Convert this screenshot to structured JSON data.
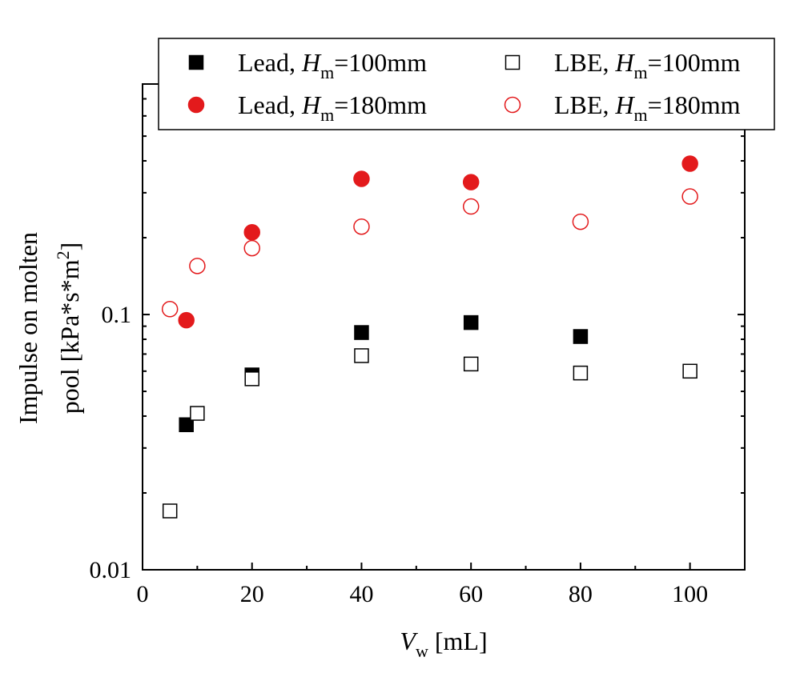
{
  "chart_data": {
    "type": "scatter",
    "xlabel": {
      "var": "V",
      "sub": "w",
      "unit": " [mL]"
    },
    "ylabel": {
      "line1": "Impulse on molten",
      "line2": "pool [kPa*s*m",
      "line2_sup": "2",
      "line2_end": "]"
    },
    "xlim": [
      0,
      110
    ],
    "ylim": [
      0.01,
      0.8
    ],
    "yscale": "log",
    "x_ticks": [
      0,
      20,
      40,
      60,
      80,
      100
    ],
    "x_tick_labels": [
      "0",
      "20",
      "40",
      "60",
      "80",
      "100"
    ],
    "y_ticks": [
      0.01,
      0.1
    ],
    "y_tick_labels": [
      "0.01",
      "0.1"
    ],
    "legend_placement": "top",
    "series": [
      {
        "name": "Lead, H_m=100mm",
        "legend": {
          "prefix": "Lead, ",
          "var": "H",
          "sub": "m",
          "suffix": "=100mm"
        },
        "marker": "square",
        "filled": true,
        "color": "#000000",
        "x": [
          8,
          20,
          40,
          60,
          80
        ],
        "y": [
          0.037,
          0.058,
          0.085,
          0.093,
          0.082
        ]
      },
      {
        "name": "LBE, H_m=100mm",
        "legend": {
          "prefix": "LBE, ",
          "var": "H",
          "sub": "m",
          "suffix": "=100mm"
        },
        "marker": "square",
        "filled": false,
        "color": "#000000",
        "x": [
          5,
          10,
          20,
          40,
          60,
          80,
          100
        ],
        "y": [
          0.017,
          0.041,
          0.056,
          0.069,
          0.064,
          0.059,
          0.06
        ]
      },
      {
        "name": "Lead, H_m=180mm",
        "legend": {
          "prefix": "Lead, ",
          "var": "H",
          "sub": "m",
          "suffix": "=180mm"
        },
        "marker": "circle",
        "filled": true,
        "color": "#e31a1c",
        "x": [
          8,
          20,
          40,
          60,
          100
        ],
        "y": [
          0.095,
          0.21,
          0.34,
          0.33,
          0.39
        ]
      },
      {
        "name": "LBE, H_m=180mm",
        "legend": {
          "prefix": "LBE, ",
          "var": "H",
          "sub": "m",
          "suffix": "=180mm"
        },
        "marker": "circle",
        "filled": false,
        "color": "#e31a1c",
        "x": [
          5,
          10,
          20,
          40,
          60,
          80,
          100
        ],
        "y": [
          0.105,
          0.155,
          0.182,
          0.221,
          0.265,
          0.231,
          0.29
        ]
      }
    ]
  }
}
